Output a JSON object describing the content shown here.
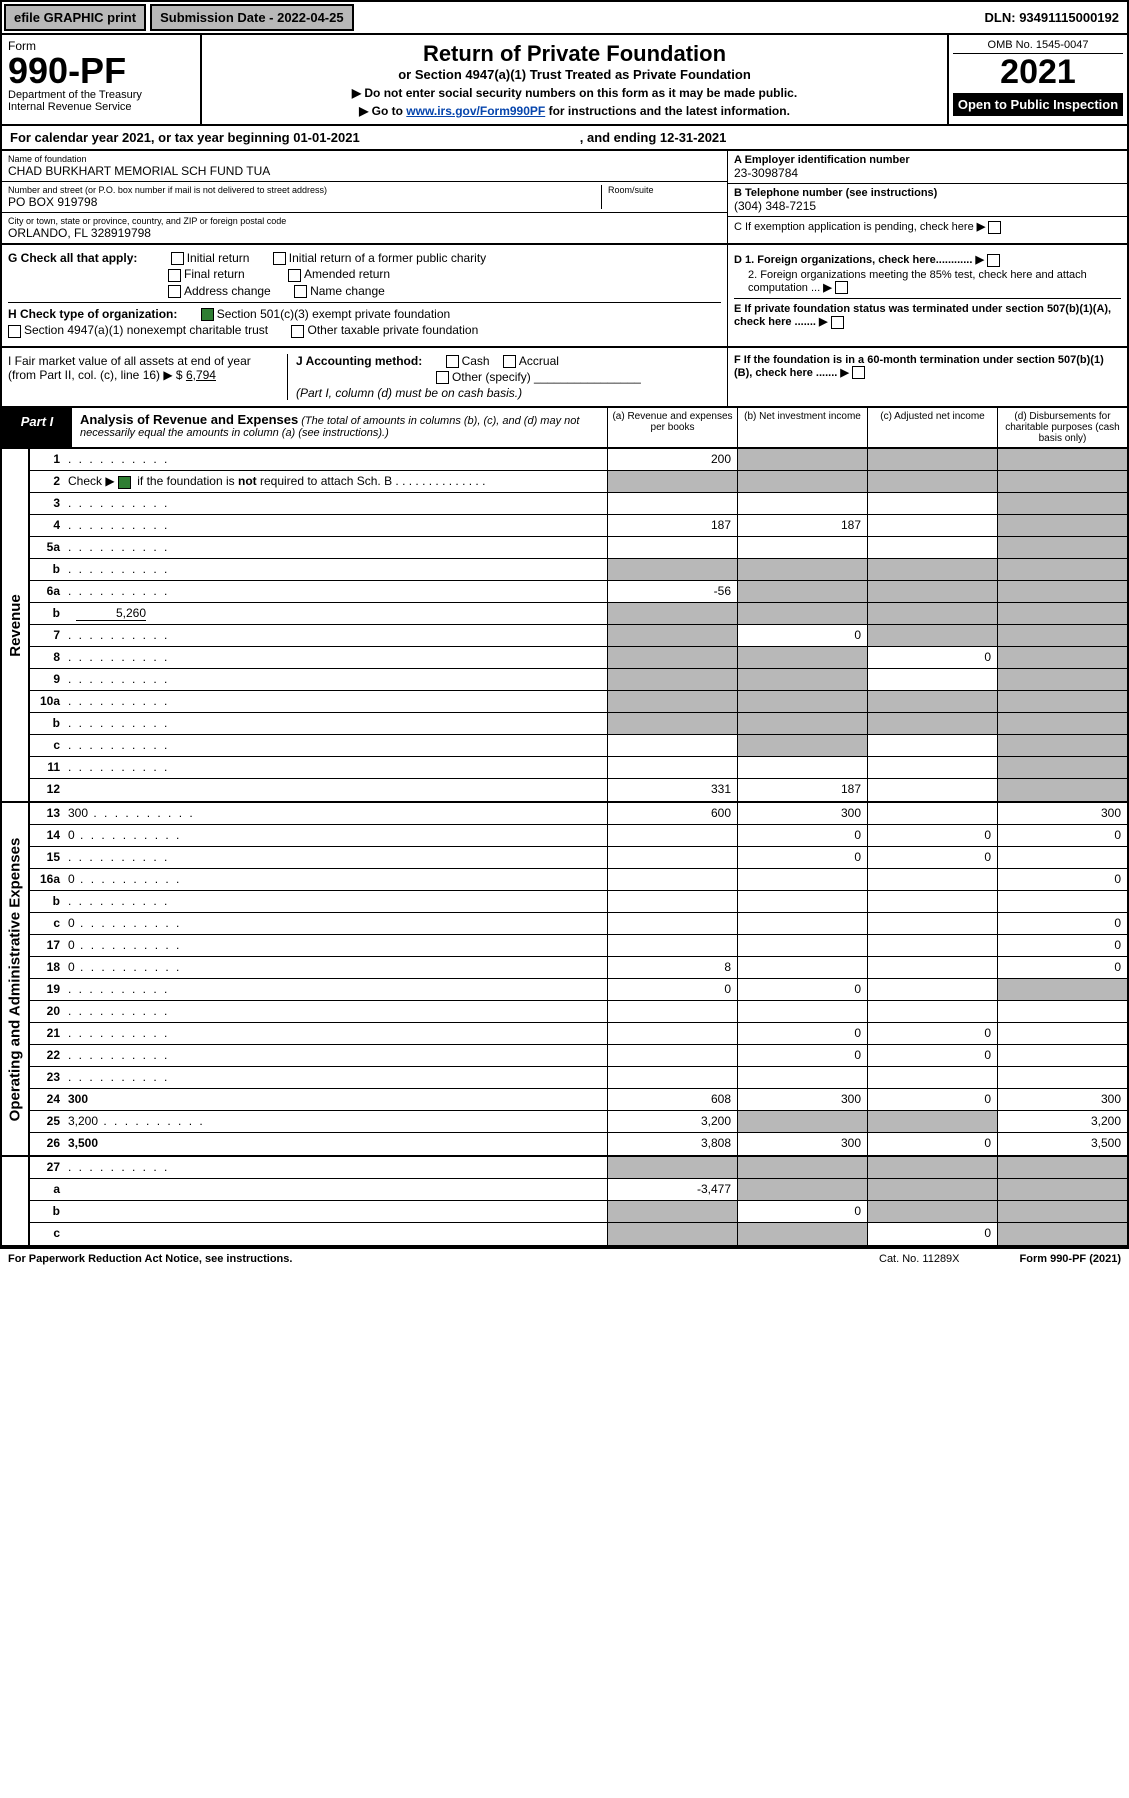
{
  "top": {
    "efile": "efile GRAPHIC print",
    "submission": "Submission Date - 2022-04-25",
    "dln": "DLN: 93491115000192"
  },
  "header": {
    "form_label": "Form",
    "form_no": "990-PF",
    "dept": "Department of the Treasury",
    "irs": "Internal Revenue Service",
    "title": "Return of Private Foundation",
    "subtitle": "or Section 4947(a)(1) Trust Treated as Private Foundation",
    "instr1": "▶ Do not enter social security numbers on this form as it may be made public.",
    "instr2_pre": "▶ Go to ",
    "instr2_link": "www.irs.gov/Form990PF",
    "instr2_post": " for instructions and the latest information.",
    "omb": "OMB No. 1545-0047",
    "year": "2021",
    "open": "Open to Public Inspection"
  },
  "cal": {
    "begin": "For calendar year 2021, or tax year beginning 01-01-2021",
    "end": ", and ending 12-31-2021"
  },
  "info": {
    "name_lab": "Name of foundation",
    "name": "CHAD BURKHART MEMORIAL SCH FUND TUA",
    "addr_lab": "Number and street (or P.O. box number if mail is not delivered to street address)",
    "addr": "PO BOX 919798",
    "room_lab": "Room/suite",
    "city_lab": "City or town, state or province, country, and ZIP or foreign postal code",
    "city": "ORLANDO, FL  328919798",
    "ein_lab": "A Employer identification number",
    "ein": "23-3098784",
    "tel_lab": "B Telephone number (see instructions)",
    "tel": "(304) 348-7215",
    "c_lab": "C If exemption application is pending, check here"
  },
  "g": {
    "label": "G Check all that apply:",
    "opts": [
      "Initial return",
      "Initial return of a former public charity",
      "Final return",
      "Amended return",
      "Address change",
      "Name change"
    ]
  },
  "h": {
    "label": "H Check type of organization:",
    "o1": "Section 501(c)(3) exempt private foundation",
    "o2": "Section 4947(a)(1) nonexempt charitable trust",
    "o3": "Other taxable private foundation"
  },
  "d": {
    "d1": "D 1. Foreign organizations, check here............",
    "d2": "2. Foreign organizations meeting the 85% test, check here and attach computation ...",
    "e": "E  If private foundation status was terminated under section 507(b)(1)(A), check here .......",
    "f": "F  If the foundation is in a 60-month termination under section 507(b)(1)(B), check here ......."
  },
  "i": {
    "label": "I Fair market value of all assets at end of year (from Part II, col. (c), line 16) ▶ $",
    "val": "6,794"
  },
  "j": {
    "label": "J Accounting method:",
    "cash": "Cash",
    "accrual": "Accrual",
    "other": "Other (specify)",
    "note": "(Part I, column (d) must be on cash basis.)"
  },
  "part1": {
    "lbl": "Part I",
    "title": "Analysis of Revenue and Expenses",
    "note": "(The total of amounts in columns (b), (c), and (d) may not necessarily equal the amounts in column (a) (see instructions).)",
    "col_a": "(a)   Revenue and expenses per books",
    "col_b": "(b)   Net investment income",
    "col_c": "(c)   Adjusted net income",
    "col_d": "(d)   Disbursements for charitable purposes (cash basis only)"
  },
  "side": {
    "rev": "Revenue",
    "exp": "Operating and Administrative Expenses"
  },
  "rows": {
    "r1": {
      "n": "1",
      "d": "",
      "a": "200",
      "b": "",
      "c": "",
      "ga": false,
      "gb": true,
      "gc": true,
      "gd": true
    },
    "r2": {
      "n": "2",
      "d": "",
      "a": "",
      "b": "",
      "c": "",
      "ga": true,
      "gb": true,
      "gc": true,
      "gd": true,
      "chk": true
    },
    "r3": {
      "n": "3",
      "d": "",
      "a": "",
      "b": "",
      "c": "",
      "ga": false,
      "gb": false,
      "gc": false,
      "gd": true
    },
    "r4": {
      "n": "4",
      "d": "",
      "a": "187",
      "b": "187",
      "c": "",
      "ga": false,
      "gb": false,
      "gc": false,
      "gd": true
    },
    "r5a": {
      "n": "5a",
      "d": "",
      "a": "",
      "b": "",
      "c": "",
      "ga": false,
      "gb": false,
      "gc": false,
      "gd": true
    },
    "r5b": {
      "n": "b",
      "d": "",
      "a": "",
      "b": "",
      "c": "",
      "ga": true,
      "gb": true,
      "gc": true,
      "gd": true
    },
    "r6a": {
      "n": "6a",
      "d": "",
      "a": "-56",
      "b": "",
      "c": "",
      "ga": false,
      "gb": true,
      "gc": true,
      "gd": true
    },
    "r6b": {
      "n": "b",
      "d": "",
      "inline": "5,260",
      "a": "",
      "b": "",
      "c": "",
      "ga": true,
      "gb": true,
      "gc": true,
      "gd": true
    },
    "r7": {
      "n": "7",
      "d": "",
      "a": "",
      "b": "0",
      "c": "",
      "ga": true,
      "gb": false,
      "gc": true,
      "gd": true
    },
    "r8": {
      "n": "8",
      "d": "",
      "a": "",
      "b": "",
      "c": "0",
      "ga": true,
      "gb": true,
      "gc": false,
      "gd": true
    },
    "r9": {
      "n": "9",
      "d": "",
      "a": "",
      "b": "",
      "c": "",
      "ga": true,
      "gb": true,
      "gc": false,
      "gd": true
    },
    "r10a": {
      "n": "10a",
      "d": "",
      "a": "",
      "b": "",
      "c": "",
      "ga": true,
      "gb": true,
      "gc": true,
      "gd": true
    },
    "r10b": {
      "n": "b",
      "d": "",
      "a": "",
      "b": "",
      "c": "",
      "ga": true,
      "gb": true,
      "gc": true,
      "gd": true
    },
    "r10c": {
      "n": "c",
      "d": "",
      "a": "",
      "b": "",
      "c": "",
      "ga": false,
      "gb": true,
      "gc": false,
      "gd": true
    },
    "r11": {
      "n": "11",
      "d": "",
      "a": "",
      "b": "",
      "c": "",
      "ga": false,
      "gb": false,
      "gc": false,
      "gd": true
    },
    "r12": {
      "n": "12",
      "d": "",
      "bold": true,
      "a": "331",
      "b": "187",
      "c": "",
      "ga": false,
      "gb": false,
      "gc": false,
      "gd": true
    },
    "r13": {
      "n": "13",
      "d": "300",
      "a": "600",
      "b": "300",
      "c": "",
      "ga": false,
      "gb": false,
      "gc": false,
      "gd": false
    },
    "r14": {
      "n": "14",
      "d": "0",
      "a": "",
      "b": "0",
      "c": "0",
      "ga": false,
      "gb": false,
      "gc": false,
      "gd": false
    },
    "r15": {
      "n": "15",
      "d": "",
      "a": "",
      "b": "0",
      "c": "0",
      "ga": false,
      "gb": false,
      "gc": false,
      "gd": false
    },
    "r16a": {
      "n": "16a",
      "d": "0",
      "a": "",
      "b": "",
      "c": "",
      "ga": false,
      "gb": false,
      "gc": false,
      "gd": false
    },
    "r16b": {
      "n": "b",
      "d": "",
      "a": "",
      "b": "",
      "c": "",
      "ga": false,
      "gb": false,
      "gc": false,
      "gd": false
    },
    "r16c": {
      "n": "c",
      "d": "0",
      "a": "",
      "b": "",
      "c": "",
      "ga": false,
      "gb": false,
      "gc": false,
      "gd": false
    },
    "r17": {
      "n": "17",
      "d": "0",
      "a": "",
      "b": "",
      "c": "",
      "ga": false,
      "gb": false,
      "gc": false,
      "gd": false
    },
    "r18": {
      "n": "18",
      "d": "0",
      "a": "8",
      "b": "",
      "c": "",
      "ga": false,
      "gb": false,
      "gc": false,
      "gd": false
    },
    "r19": {
      "n": "19",
      "d": "",
      "a": "0",
      "b": "0",
      "c": "",
      "ga": false,
      "gb": false,
      "gc": false,
      "gd": true
    },
    "r20": {
      "n": "20",
      "d": "",
      "a": "",
      "b": "",
      "c": "",
      "ga": false,
      "gb": false,
      "gc": false,
      "gd": false
    },
    "r21": {
      "n": "21",
      "d": "",
      "a": "",
      "b": "0",
      "c": "0",
      "ga": false,
      "gb": false,
      "gc": false,
      "gd": false
    },
    "r22": {
      "n": "22",
      "d": "",
      "a": "",
      "b": "0",
      "c": "0",
      "ga": false,
      "gb": false,
      "gc": false,
      "gd": false
    },
    "r23": {
      "n": "23",
      "d": "",
      "a": "",
      "b": "",
      "c": "",
      "ga": false,
      "gb": false,
      "gc": false,
      "gd": false
    },
    "r24": {
      "n": "24",
      "d": "300",
      "bold": true,
      "a": "608",
      "b": "300",
      "c": "0",
      "ga": false,
      "gb": false,
      "gc": false,
      "gd": false
    },
    "r25": {
      "n": "25",
      "d": "3,200",
      "a": "3,200",
      "b": "",
      "c": "",
      "ga": false,
      "gb": true,
      "gc": true,
      "gd": false
    },
    "r26": {
      "n": "26",
      "d": "3,500",
      "bold": true,
      "a": "3,808",
      "b": "300",
      "c": "0",
      "ga": false,
      "gb": false,
      "gc": false,
      "gd": false
    },
    "r27": {
      "n": "27",
      "d": "",
      "a": "",
      "b": "",
      "c": "",
      "ga": true,
      "gb": true,
      "gc": true,
      "gd": true
    },
    "r27a": {
      "n": "a",
      "d": "",
      "bold": true,
      "a": "-3,477",
      "b": "",
      "c": "",
      "ga": false,
      "gb": true,
      "gc": true,
      "gd": true
    },
    "r27b": {
      "n": "b",
      "d": "",
      "bold": true,
      "a": "",
      "b": "0",
      "c": "",
      "ga": true,
      "gb": false,
      "gc": true,
      "gd": true
    },
    "r27c": {
      "n": "c",
      "d": "",
      "bold": true,
      "a": "",
      "b": "",
      "c": "0",
      "ga": true,
      "gb": true,
      "gc": false,
      "gd": true
    }
  },
  "footer": {
    "pra": "For Paperwork Reduction Act Notice, see instructions.",
    "cat": "Cat. No. 11289X",
    "form": "Form 990-PF (2021)"
  },
  "colors": {
    "grey": "#b8b8b8",
    "black": "#000000",
    "link": "#0645ad",
    "chkgreen": "#2e7d32"
  }
}
